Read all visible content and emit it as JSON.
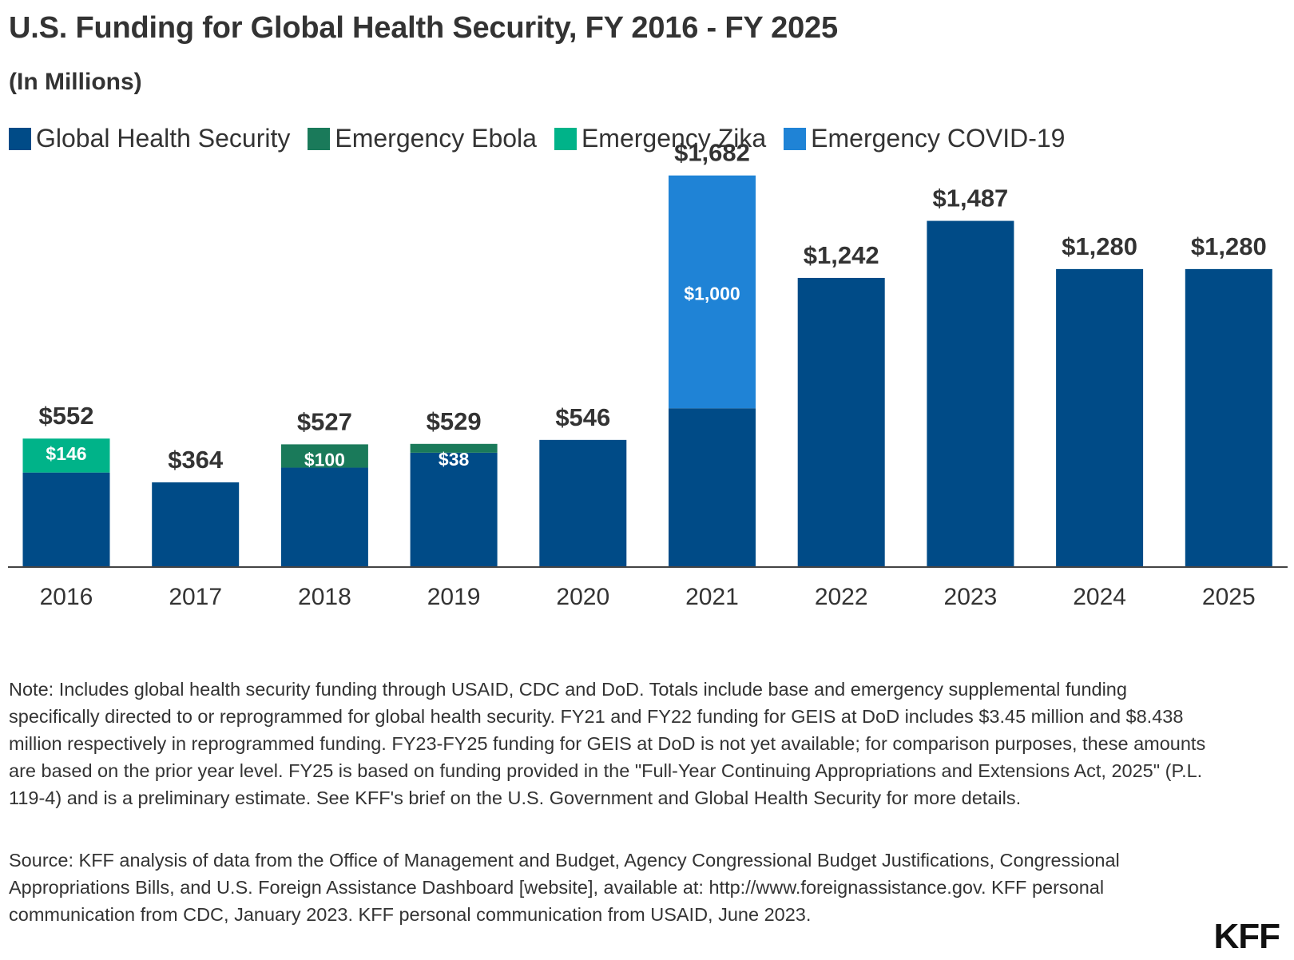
{
  "title": "U.S. Funding for Global Health Security, FY 2016 - FY 2025",
  "subtitle": "(In Millions)",
  "legend": [
    {
      "label": "Global Health Security",
      "color": "#004b87"
    },
    {
      "label": "Emergency Ebola",
      "color": "#1a7a5a"
    },
    {
      "label": "Emergency Zika",
      "color": "#00b389"
    },
    {
      "label": "Emergency COVID-19",
      "color": "#1f83d6"
    }
  ],
  "chart_data": {
    "type": "bar",
    "stacked": true,
    "categories": [
      "2016",
      "2017",
      "2018",
      "2019",
      "2020",
      "2021",
      "2022",
      "2023",
      "2024",
      "2025"
    ],
    "series": [
      {
        "name": "Global Health Security",
        "color": "#004b87",
        "values": [
          406,
          364,
          427,
          491,
          546,
          682,
          1242,
          1487,
          1280,
          1280
        ]
      },
      {
        "name": "Emergency Ebola",
        "color": "#1a7a5a",
        "values": [
          0,
          0,
          100,
          38,
          0,
          0,
          0,
          0,
          0,
          0
        ]
      },
      {
        "name": "Emergency Zika",
        "color": "#00b389",
        "values": [
          146,
          0,
          0,
          0,
          0,
          0,
          0,
          0,
          0,
          0
        ]
      },
      {
        "name": "Emergency COVID-19",
        "color": "#1f83d6",
        "values": [
          0,
          0,
          0,
          0,
          0,
          1000,
          0,
          0,
          0,
          0
        ]
      }
    ],
    "total_labels": [
      "$552",
      "$364",
      "$527",
      "$529",
      "$546",
      "$1,682",
      "$1,242",
      "$1,487",
      "$1,280",
      "$1,280"
    ],
    "segment_labels": [
      "$146",
      "",
      "$100",
      "$38",
      "",
      "$1,000",
      "",
      "",
      "",
      ""
    ],
    "ylim": [
      0,
      1800
    ],
    "grid": false
  },
  "note": "Note: Includes global health security funding through USAID, CDC and DoD. Totals include base and emergency supplemental funding specifically directed to or reprogrammed for global health security. FY21 and FY22 funding for GEIS at DoD includes $3.45 million and $8.438 million respectively in reprogrammed funding. FY23-FY25 funding for GEIS at DoD is not yet available; for comparison purposes, these amounts are based on the prior year level. FY25 is based on funding provided in the \"Full-Year Continuing Appropriations and Extensions Act, 2025\" (P.L. 119-4) and is a preliminary estimate. See KFF's brief on the U.S. Government and Global Health Security for more details.",
  "source": "Source: KFF analysis of data from the Office of Management and Budget, Agency Congressional Budget Justifications, Congressional Appropriations Bills, and U.S. Foreign Assistance Dashboard [website], available at: http://www.foreignassistance.gov. KFF personal communication from CDC, January 2023. KFF personal communication from USAID, June 2023.",
  "logo": "KFF"
}
